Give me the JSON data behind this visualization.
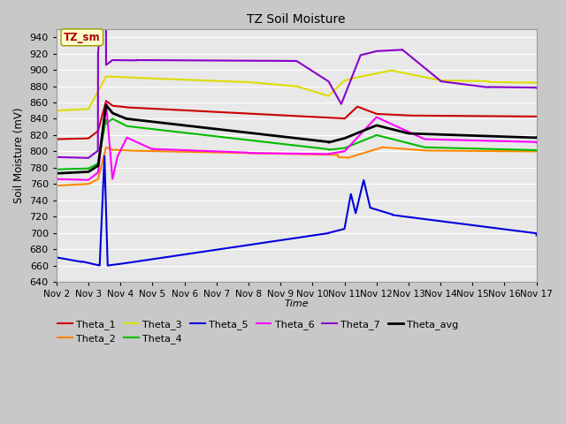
{
  "title": "TZ Soil Moisture",
  "xlabel": "Time",
  "ylabel": "Soil Moisture (mV)",
  "ylim": [
    640,
    950
  ],
  "yticks": [
    640,
    660,
    680,
    700,
    720,
    740,
    760,
    780,
    800,
    820,
    840,
    860,
    880,
    900,
    920,
    940
  ],
  "fig_bg": "#c8c8c8",
  "plot_bg": "#e8e8e8",
  "grid_color": "#ffffff",
  "label_box": "TZ_sm",
  "label_box_facecolor": "#ffffcc",
  "label_box_edgecolor": "#999900",
  "label_box_text_color": "#aa0000",
  "series": {
    "Theta_1": {
      "color": "#cc0000",
      "linewidth": 1.5
    },
    "Theta_2": {
      "color": "#ff8800",
      "linewidth": 1.5
    },
    "Theta_3": {
      "color": "#dddd00",
      "linewidth": 1.5
    },
    "Theta_4": {
      "color": "#00bb00",
      "linewidth": 1.5
    },
    "Theta_5": {
      "color": "#0000dd",
      "linewidth": 1.5
    },
    "Theta_6": {
      "color": "#ff00ff",
      "linewidth": 1.5
    },
    "Theta_7": {
      "color": "#8800cc",
      "linewidth": 1.5
    },
    "Theta_avg": {
      "color": "#000000",
      "linewidth": 2.0
    }
  },
  "x_tick_labels": [
    "Nov 2",
    "Nov 3",
    "Nov 4",
    "Nov 5",
    "Nov 6",
    "Nov 7",
    "Nov 8",
    "Nov 9",
    "Nov 10",
    "Nov 11",
    "Nov 12",
    "Nov 13",
    "Nov 14",
    "Nov 15",
    "Nov 16",
    "Nov 17"
  ],
  "x_tick_positions": [
    2,
    3,
    4,
    5,
    6,
    7,
    8,
    9,
    10,
    11,
    12,
    13,
    14,
    15,
    16,
    17
  ]
}
